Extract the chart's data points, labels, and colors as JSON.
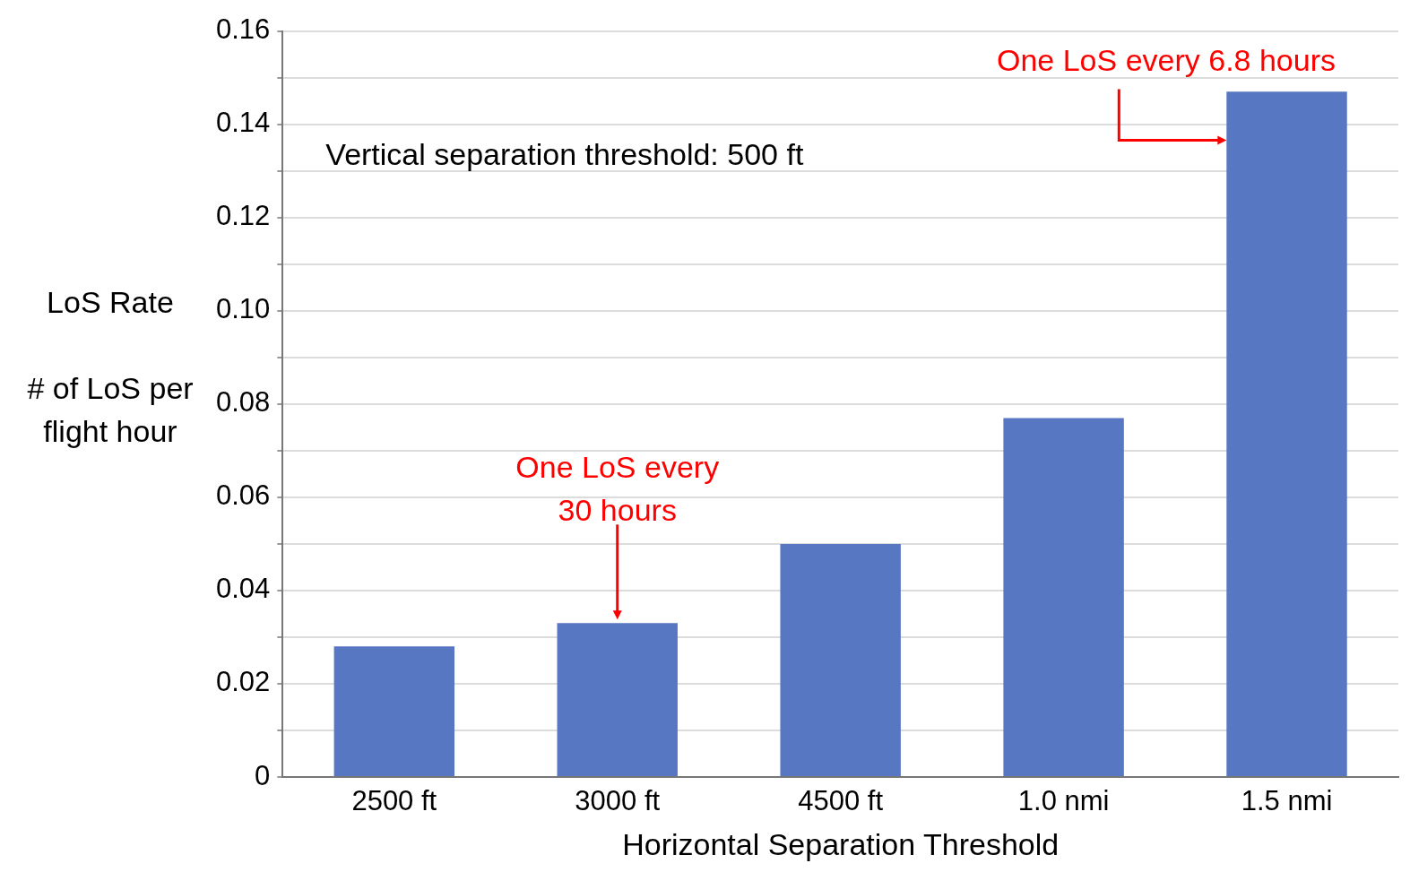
{
  "chart_data": {
    "type": "bar",
    "xlabel": "Horizontal Separation Threshold",
    "ylabel": "LoS Rate\n\n# of LoS per\nflight hour",
    "categories": [
      "2500 ft",
      "3000 ft",
      "4500 ft",
      "1.0 nmi",
      "1.5 nmi"
    ],
    "values": [
      0.028,
      0.033,
      0.05,
      0.077,
      0.147
    ],
    "color": "#5877c3",
    "ylim": [
      0,
      0.16
    ],
    "yticks": [
      0,
      {
        "value": 0.01,
        "label": null
      },
      0.02,
      {
        "value": 0.03,
        "label": null
      },
      0.04,
      {
        "value": 0.05,
        "label": null
      },
      0.06,
      {
        "value": 0.07,
        "label": null
      },
      0.08,
      {
        "value": 0.09,
        "label": null
      },
      {
        "value": 0.1,
        "label": "0.10"
      },
      {
        "value": 0.11,
        "label": null
      },
      0.12,
      {
        "value": 0.13,
        "label": null
      },
      0.14,
      {
        "value": 0.15,
        "label": null
      },
      0.16
    ],
    "grid": "y",
    "legend": false,
    "annotations": [
      "Vertical separation threshold: 500 ft",
      {
        "text": "One LoS every 30 hours",
        "x": "3000 ft",
        "y": 0.033
      },
      {
        "text": "One LoS every 6.8 hours",
        "x": "1.5 nmi",
        "y": 0.147
      }
    ]
  }
}
